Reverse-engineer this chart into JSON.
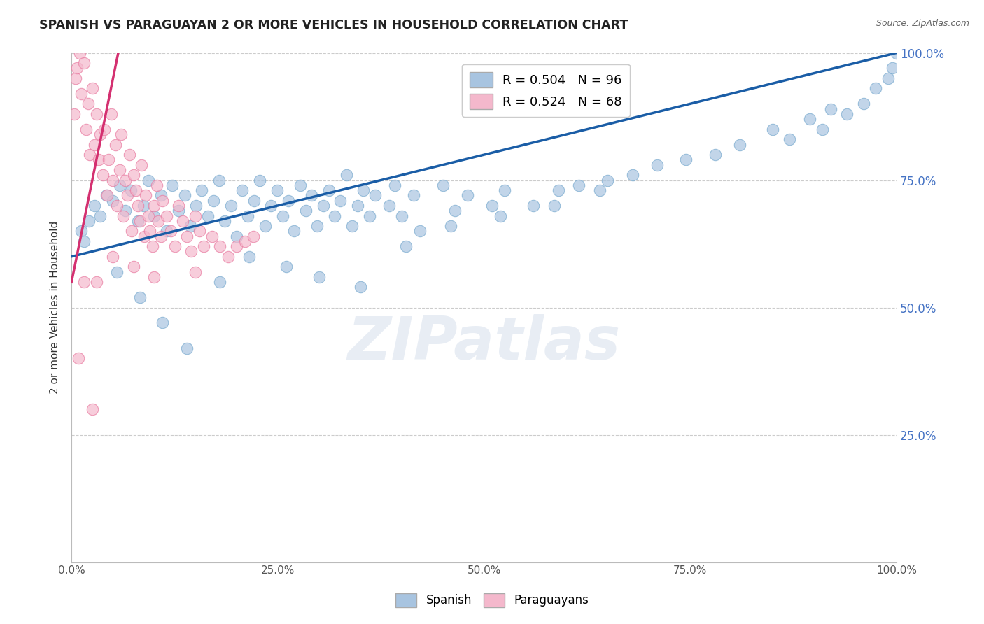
{
  "title": "SPANISH VS PARAGUAYAN 2 OR MORE VEHICLES IN HOUSEHOLD CORRELATION CHART",
  "source": "Source: ZipAtlas.com",
  "ylabel": "2 or more Vehicles in Household",
  "xlim": [
    0,
    100
  ],
  "ylim": [
    0,
    100
  ],
  "xtick_labels": [
    "0.0%",
    "25.0%",
    "50.0%",
    "75.0%",
    "100.0%"
  ],
  "xtick_vals": [
    0,
    25,
    50,
    75,
    100
  ],
  "ytick_labels": [
    "25.0%",
    "50.0%",
    "75.0%",
    "100.0%"
  ],
  "ytick_vals": [
    25,
    50,
    75,
    100
  ],
  "legend_blue_label": "R = 0.504   N = 96",
  "legend_pink_label": "R = 0.524   N = 68",
  "blue_color": "#a8c4e0",
  "blue_edge_color": "#7aabcf",
  "blue_line_color": "#1a5da6",
  "pink_color": "#f4b8cc",
  "pink_edge_color": "#e87aa0",
  "pink_line_color": "#d43070",
  "ytick_color": "#4472c4",
  "watermark": "ZIPatlas",
  "legend_bottom_blue": "Spanish",
  "legend_bottom_pink": "Paraguayans",
  "spanish_x": [
    1.2,
    1.5,
    2.1,
    2.8,
    3.5,
    4.2,
    5.0,
    5.8,
    6.5,
    7.2,
    8.0,
    8.7,
    9.3,
    10.0,
    10.8,
    11.5,
    12.2,
    13.0,
    13.7,
    14.4,
    15.1,
    15.8,
    16.5,
    17.2,
    17.9,
    18.6,
    19.3,
    20.0,
    20.7,
    21.4,
    22.1,
    22.8,
    23.5,
    24.2,
    24.9,
    25.6,
    26.3,
    27.0,
    27.7,
    28.4,
    29.1,
    29.8,
    30.5,
    31.2,
    31.9,
    32.6,
    33.3,
    34.0,
    34.7,
    35.4,
    36.1,
    36.8,
    38.5,
    39.2,
    40.0,
    41.5,
    42.2,
    45.0,
    46.5,
    48.0,
    51.0,
    52.5,
    56.0,
    59.0,
    61.5,
    64.0,
    68.0,
    71.0,
    74.5,
    78.0,
    81.0,
    85.0,
    87.0,
    89.5,
    91.0,
    92.0,
    94.0,
    96.0,
    97.5,
    99.0,
    99.5,
    100.0,
    5.5,
    8.3,
    11.0,
    14.0,
    18.0,
    21.5,
    26.0,
    30.0,
    35.0,
    40.5,
    46.0,
    52.0,
    58.5,
    65.0
  ],
  "spanish_y": [
    65,
    63,
    67,
    70,
    68,
    72,
    71,
    74,
    69,
    73,
    67,
    70,
    75,
    68,
    72,
    65,
    74,
    69,
    72,
    66,
    70,
    73,
    68,
    71,
    75,
    67,
    70,
    64,
    73,
    68,
    71,
    75,
    66,
    70,
    73,
    68,
    71,
    65,
    74,
    69,
    72,
    66,
    70,
    73,
    68,
    71,
    76,
    66,
    70,
    73,
    68,
    72,
    70,
    74,
    68,
    72,
    65,
    74,
    69,
    72,
    70,
    73,
    70,
    73,
    74,
    73,
    76,
    78,
    79,
    80,
    82,
    85,
    83,
    87,
    85,
    89,
    88,
    90,
    93,
    95,
    97,
    100,
    57,
    52,
    47,
    42,
    55,
    60,
    58,
    56,
    54,
    62,
    66,
    68,
    70,
    75
  ],
  "paraguayan_x": [
    0.3,
    0.5,
    0.7,
    1.0,
    1.2,
    1.5,
    1.8,
    2.0,
    2.2,
    2.5,
    2.8,
    3.0,
    3.3,
    3.5,
    3.8,
    4.0,
    4.3,
    4.5,
    4.8,
    5.0,
    5.3,
    5.5,
    5.8,
    6.0,
    6.3,
    6.5,
    6.8,
    7.0,
    7.3,
    7.5,
    7.8,
    8.0,
    8.3,
    8.5,
    8.8,
    9.0,
    9.3,
    9.5,
    9.8,
    10.0,
    10.3,
    10.5,
    10.8,
    11.0,
    11.5,
    12.0,
    12.5,
    13.0,
    13.5,
    14.0,
    14.5,
    15.0,
    15.5,
    16.0,
    17.0,
    18.0,
    19.0,
    20.0,
    21.0,
    22.0,
    1.5,
    3.0,
    5.0,
    7.5,
    10.0,
    15.0,
    0.8,
    2.5
  ],
  "paraguayan_y": [
    88,
    95,
    97,
    100,
    92,
    98,
    85,
    90,
    80,
    93,
    82,
    88,
    79,
    84,
    76,
    85,
    72,
    79,
    88,
    75,
    82,
    70,
    77,
    84,
    68,
    75,
    72,
    80,
    65,
    76,
    73,
    70,
    67,
    78,
    64,
    72,
    68,
    65,
    62,
    70,
    74,
    67,
    64,
    71,
    68,
    65,
    62,
    70,
    67,
    64,
    61,
    68,
    65,
    62,
    64,
    62,
    60,
    62,
    63,
    64,
    55,
    55,
    60,
    58,
    56,
    57,
    40,
    30
  ]
}
